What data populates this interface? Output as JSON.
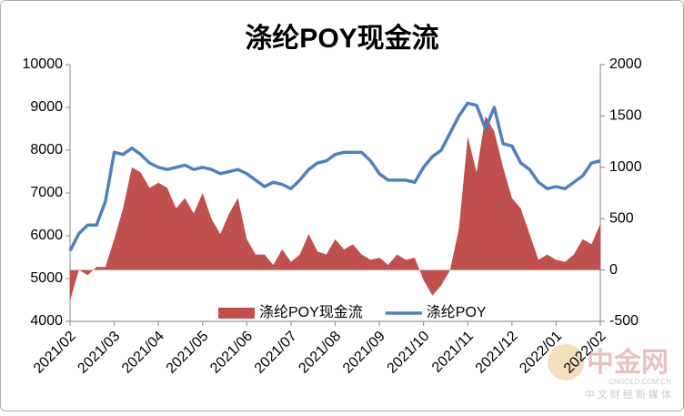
{
  "chart_data": {
    "type": "line",
    "title": "涤纶POY现金流",
    "categories": [
      "2021/02",
      null,
      null,
      null,
      null,
      "2021/03",
      null,
      null,
      null,
      null,
      "2021/04",
      null,
      null,
      null,
      null,
      "2021/05",
      null,
      null,
      null,
      null,
      "2021/06",
      null,
      null,
      null,
      null,
      "2021/07",
      null,
      null,
      null,
      null,
      "2021/08",
      null,
      null,
      null,
      null,
      "2021/09",
      null,
      null,
      null,
      null,
      "2021/10",
      null,
      null,
      null,
      null,
      "2021/11",
      null,
      null,
      null,
      null,
      "2021/12",
      null,
      null,
      null,
      null,
      "2022/01",
      null,
      null,
      null,
      null,
      "2022/02"
    ],
    "series": [
      {
        "name": "涤纶POY现金流",
        "type": "area",
        "axis": "y2",
        "color": "#c0504d",
        "values": [
          -300,
          0,
          -50,
          30,
          30,
          300,
          600,
          1000,
          950,
          800,
          850,
          800,
          600,
          700,
          550,
          750,
          500,
          350,
          550,
          700,
          300,
          150,
          150,
          50,
          200,
          80,
          150,
          350,
          180,
          150,
          300,
          200,
          250,
          150,
          100,
          120,
          50,
          150,
          100,
          120,
          -100,
          -250,
          -150,
          0,
          400,
          1300,
          950,
          1500,
          1350,
          1000,
          700,
          600,
          350,
          100,
          150,
          100,
          80,
          150,
          300,
          250,
          450
        ]
      },
      {
        "name": "涤纶POY",
        "type": "line",
        "color": "#4f81bd",
        "values": [
          5650,
          6050,
          6250,
          6250,
          6800,
          7950,
          7900,
          8050,
          7900,
          7700,
          7600,
          7550,
          7600,
          7650,
          7550,
          7600,
          7550,
          7450,
          7500,
          7550,
          7450,
          7300,
          7150,
          7250,
          7200,
          7100,
          7300,
          7550,
          7700,
          7750,
          7900,
          7950,
          7950,
          7950,
          7750,
          7450,
          7300,
          7300,
          7300,
          7250,
          7600,
          7850,
          8000,
          8400,
          8800,
          9100,
          9050,
          8500,
          9000,
          8150,
          8100,
          7700,
          7550,
          7250,
          7100,
          7150,
          7100,
          7250,
          7400,
          7700,
          7750
        ]
      }
    ],
    "ylim": [
      4000,
      10000
    ],
    "yticks": [
      4000,
      5000,
      6000,
      7000,
      8000,
      9000,
      10000
    ],
    "y2lim": [
      -500,
      2000
    ],
    "y2ticks": [
      -500,
      0,
      500,
      1000,
      1500,
      2000
    ],
    "watermark": {
      "name": "中金网",
      "url": "CNGOLD.COM.CN",
      "tagline": "中 文 财 经 新 媒 体"
    }
  }
}
